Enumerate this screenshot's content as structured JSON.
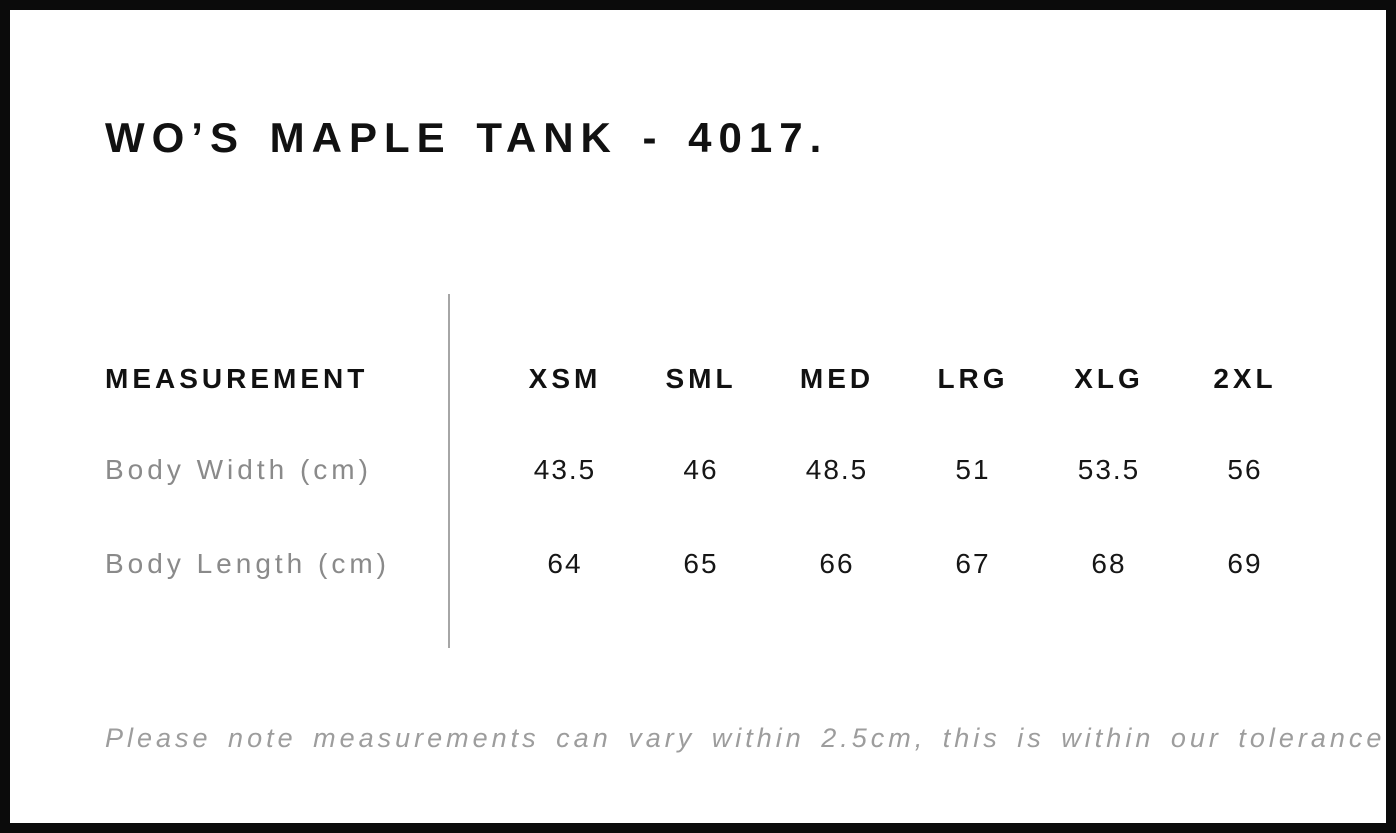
{
  "title": "WO’S MAPLE TANK - 4017.",
  "table": {
    "measurement_header": "MEASUREMENT",
    "columns": [
      "XSM",
      "SML",
      "MED",
      "LRG",
      "XLG",
      "2XL"
    ],
    "rows": [
      {
        "label": "Body Width (cm)",
        "values": [
          "43.5",
          "46",
          "48.5",
          "51",
          "53.5",
          "56"
        ]
      },
      {
        "label": "Body Length (cm)",
        "values": [
          "64",
          "65",
          "66",
          "67",
          "68",
          "69"
        ]
      }
    ]
  },
  "note": "Please note measurements can vary within 2.5cm, this is within our tolerance.",
  "colors": {
    "frame_border": "#0b0b0b",
    "heading_text": "#111111",
    "value_text": "#161616",
    "muted_label": "#8a8a8a",
    "note_text": "#9d9d9d",
    "divider": "#a6a6a6",
    "background": "#ffffff"
  }
}
